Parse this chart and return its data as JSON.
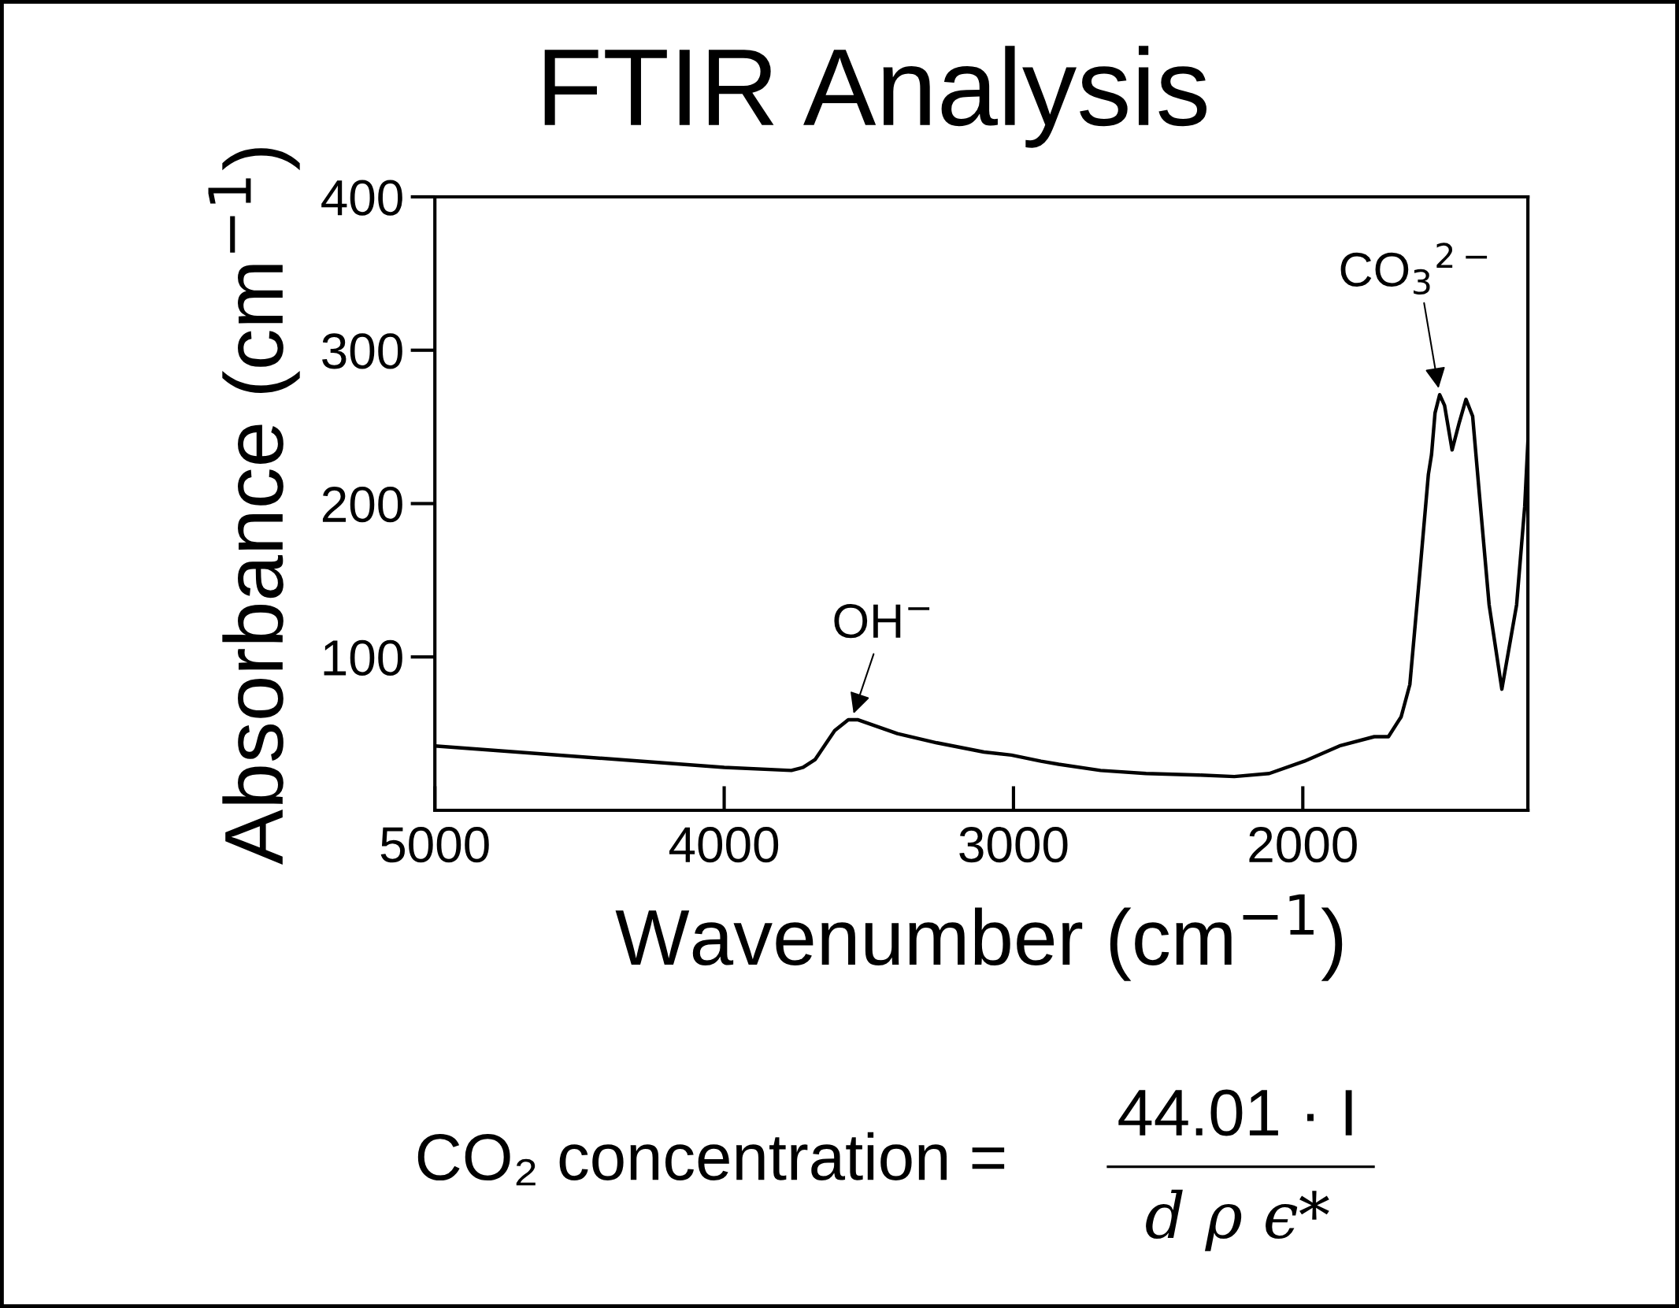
{
  "chart_data": {
    "type": "line",
    "title": "FTIR Analysis",
    "xlabel": "Wavenumber (cm$^{−1}$)",
    "ylabel": "Absorbance (cm$^{−1}$)",
    "xlim": [
      5000,
      1222
    ],
    "ylim": [
      0,
      400
    ],
    "xticks": [
      5000,
      4000,
      3000,
      2000
    ],
    "yticks": [
      100,
      200,
      300,
      400
    ],
    "grid": false,
    "legend": false,
    "marker": "none",
    "line_style": "solid",
    "series": [
      {
        "color": "#000000",
        "x": [
          5000,
          4000,
          3768,
          3727,
          3686,
          3618,
          3571,
          3537,
          3401,
          3265,
          3102,
          3007,
          2905,
          2844,
          2699,
          2542,
          2359,
          2237,
          2116,
          1995,
          1873,
          1753,
          1704,
          1660,
          1630,
          1595,
          1566,
          1555,
          1543,
          1527,
          1510,
          1484,
          1459,
          1436,
          1413,
          1391,
          1356,
          1312,
          1261,
          1233,
          1222
        ],
        "values": [
          42,
          28,
          26,
          28,
          33,
          52,
          59,
          59,
          50,
          44,
          38,
          36,
          32,
          30,
          26,
          24,
          23,
          22,
          24,
          32,
          42,
          48,
          48,
          61,
          82,
          156,
          219,
          232,
          259,
          271,
          264,
          235,
          253,
          268,
          257,
          209,
          134,
          79,
          134,
          198,
          240
        ]
      }
    ],
    "annotations": [
      {
        "text": "OH$^{−}$",
        "x": 3560,
        "y": 59
      },
      {
        "text": "CO$_{3}$$^{2−}$",
        "x": 1527,
        "y": 271
      },
      "CO₂ concentration =",
      "44.01 · I",
      "d ρ ϵ*"
    ]
  }
}
